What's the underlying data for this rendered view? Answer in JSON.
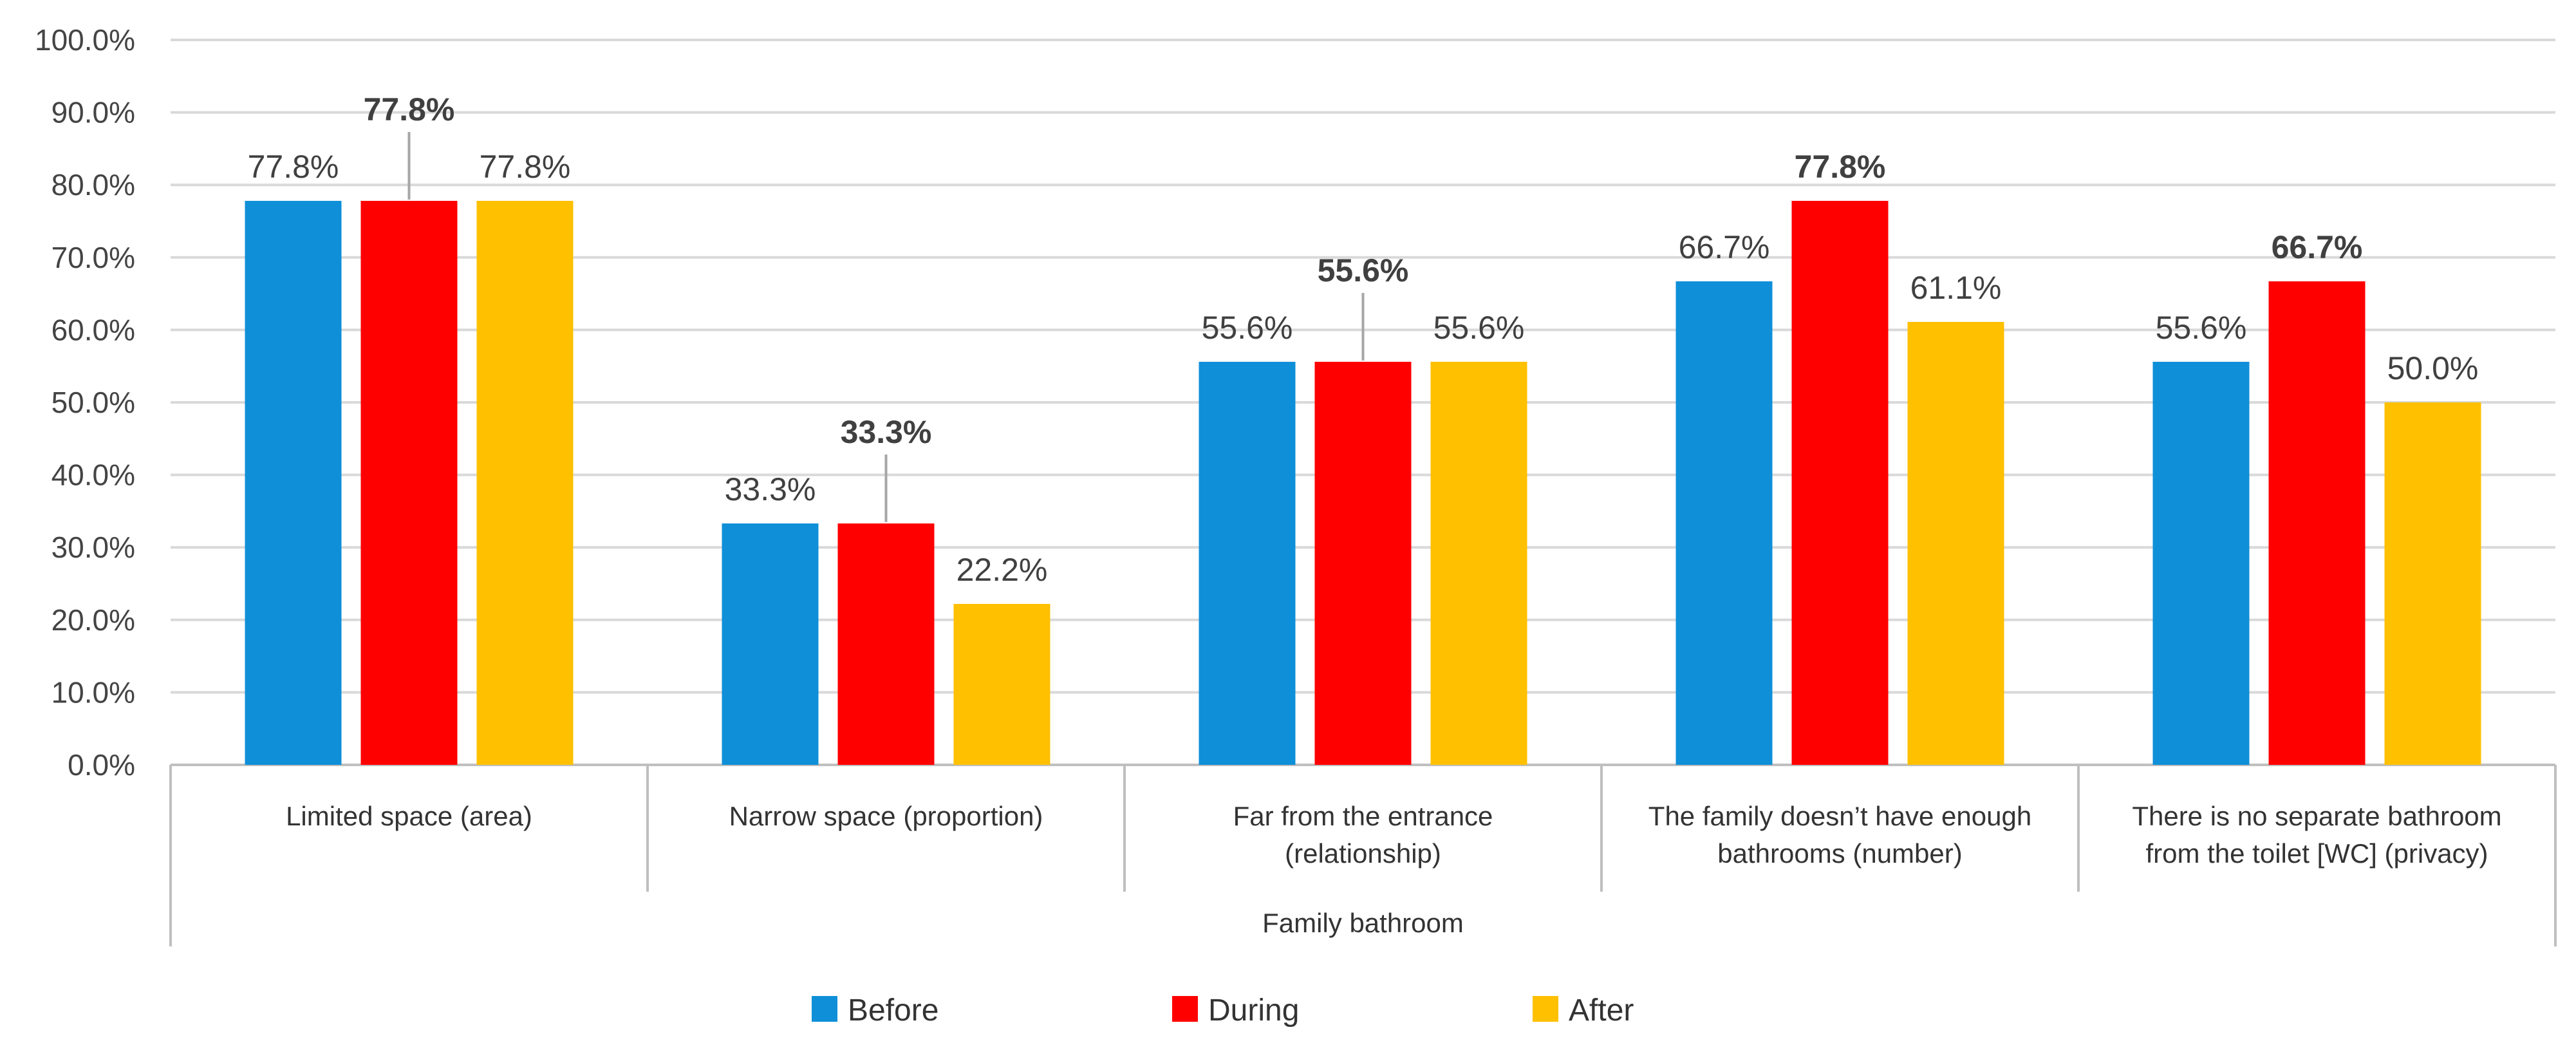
{
  "chart_data": {
    "type": "bar",
    "title": "",
    "xlabel": "",
    "ylabel": "",
    "ylim": [
      0,
      100
    ],
    "yticks": [
      "0.0%",
      "10.0%",
      "20.0%",
      "30.0%",
      "40.0%",
      "50.0%",
      "60.0%",
      "70.0%",
      "80.0%",
      "90.0%",
      "100.0%"
    ],
    "group_label": "Family bathroom",
    "categories": [
      [
        "Limited space (area)"
      ],
      [
        "Narrow space (proportion)"
      ],
      [
        "Far from the entrance",
        "(relationship)"
      ],
      [
        "The family doesn’t have enough",
        "bathrooms (number)"
      ],
      [
        "There is no separate bathroom",
        "from the toilet [WC] (privacy)"
      ]
    ],
    "series": [
      {
        "name": "Before",
        "color": "#0F8FD8",
        "values": [
          77.8,
          33.3,
          55.6,
          66.7,
          55.6
        ],
        "labels": [
          "77.8%",
          "33.3%",
          "55.6%",
          "66.7%",
          "55.6%"
        ]
      },
      {
        "name": "During",
        "color": "#FF0000",
        "values": [
          77.8,
          33.3,
          55.6,
          77.8,
          66.7
        ],
        "labels": [
          "77.8%",
          "33.3%",
          "55.6%",
          "77.8%",
          "66.7%"
        ],
        "bold_labels": true
      },
      {
        "name": "After",
        "color": "#FFC000",
        "values": [
          77.8,
          22.2,
          55.6,
          61.1,
          50.0
        ],
        "labels": [
          "77.8%",
          "22.2%",
          "55.6%",
          "61.1%",
          "50.0%"
        ]
      }
    ],
    "legend": [
      "Before",
      "During",
      "After"
    ],
    "legend_position": "bottom",
    "grid": true
  }
}
